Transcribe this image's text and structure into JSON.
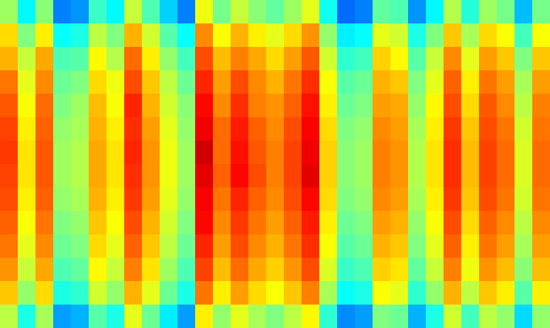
{
  "chart_data": {
    "type": "heatmap",
    "tick_labels": false,
    "zlim": [
      0,
      1
    ],
    "cells": [
      [
        0.53,
        0.37,
        0.51,
        0.25,
        0.27,
        0.43,
        0.37,
        0.57,
        0.45,
        0.33,
        0.25,
        0.61,
        0.49,
        0.57,
        0.51,
        0.47,
        0.53,
        0.6,
        0.39,
        0.23,
        0.25,
        0.47,
        0.45,
        0.27,
        0.37,
        0.55,
        0.41,
        0.53,
        0.49,
        0.31,
        0.49
      ],
      [
        0.66,
        0.5,
        0.64,
        0.38,
        0.4,
        0.56,
        0.5,
        0.7,
        0.58,
        0.46,
        0.38,
        0.74,
        0.62,
        0.7,
        0.64,
        0.6,
        0.66,
        0.73,
        0.52,
        0.36,
        0.38,
        0.6,
        0.58,
        0.4,
        0.5,
        0.68,
        0.54,
        0.66,
        0.62,
        0.44,
        0.62
      ],
      [
        0.7,
        0.57,
        0.71,
        0.45,
        0.46,
        0.63,
        0.55,
        0.77,
        0.64,
        0.52,
        0.44,
        0.8,
        0.69,
        0.75,
        0.71,
        0.66,
        0.72,
        0.79,
        0.58,
        0.42,
        0.44,
        0.67,
        0.63,
        0.46,
        0.57,
        0.74,
        0.6,
        0.72,
        0.68,
        0.5,
        0.68
      ],
      [
        0.76,
        0.6,
        0.74,
        0.48,
        0.5,
        0.66,
        0.61,
        0.8,
        0.68,
        0.56,
        0.48,
        0.84,
        0.72,
        0.8,
        0.74,
        0.7,
        0.76,
        0.83,
        0.62,
        0.46,
        0.48,
        0.7,
        0.68,
        0.5,
        0.6,
        0.78,
        0.64,
        0.76,
        0.72,
        0.54,
        0.72
      ],
      [
        0.79,
        0.62,
        0.77,
        0.5,
        0.53,
        0.69,
        0.62,
        0.84,
        0.7,
        0.58,
        0.51,
        0.87,
        0.74,
        0.83,
        0.75,
        0.73,
        0.78,
        0.86,
        0.64,
        0.48,
        0.5,
        0.72,
        0.71,
        0.52,
        0.63,
        0.8,
        0.66,
        0.79,
        0.74,
        0.56,
        0.75
      ],
      [
        0.81,
        0.64,
        0.78,
        0.52,
        0.54,
        0.7,
        0.64,
        0.83,
        0.72,
        0.6,
        0.52,
        0.89,
        0.77,
        0.85,
        0.78,
        0.74,
        0.8,
        0.88,
        0.66,
        0.5,
        0.52,
        0.74,
        0.72,
        0.54,
        0.64,
        0.82,
        0.68,
        0.8,
        0.76,
        0.58,
        0.76
      ],
      [
        0.82,
        0.65,
        0.79,
        0.53,
        0.55,
        0.71,
        0.65,
        0.84,
        0.73,
        0.61,
        0.53,
        0.92,
        0.77,
        0.86,
        0.79,
        0.75,
        0.81,
        0.89,
        0.67,
        0.51,
        0.53,
        0.75,
        0.73,
        0.55,
        0.65,
        0.83,
        0.69,
        0.81,
        0.77,
        0.59,
        0.77
      ],
      [
        0.81,
        0.65,
        0.79,
        0.53,
        0.55,
        0.71,
        0.65,
        0.83,
        0.73,
        0.61,
        0.53,
        0.9,
        0.78,
        0.87,
        0.8,
        0.75,
        0.81,
        0.9,
        0.67,
        0.51,
        0.53,
        0.75,
        0.73,
        0.55,
        0.65,
        0.83,
        0.69,
        0.81,
        0.77,
        0.59,
        0.77
      ],
      [
        0.8,
        0.64,
        0.78,
        0.52,
        0.54,
        0.7,
        0.64,
        0.82,
        0.72,
        0.6,
        0.52,
        0.88,
        0.76,
        0.84,
        0.78,
        0.74,
        0.8,
        0.87,
        0.66,
        0.5,
        0.52,
        0.74,
        0.72,
        0.54,
        0.64,
        0.82,
        0.68,
        0.8,
        0.76,
        0.58,
        0.76
      ],
      [
        0.78,
        0.62,
        0.76,
        0.5,
        0.52,
        0.68,
        0.62,
        0.8,
        0.7,
        0.58,
        0.5,
        0.87,
        0.74,
        0.82,
        0.76,
        0.72,
        0.78,
        0.85,
        0.64,
        0.48,
        0.5,
        0.72,
        0.7,
        0.52,
        0.62,
        0.8,
        0.66,
        0.78,
        0.74,
        0.56,
        0.74
      ],
      [
        0.76,
        0.6,
        0.74,
        0.48,
        0.5,
        0.66,
        0.6,
        0.78,
        0.68,
        0.56,
        0.48,
        0.84,
        0.72,
        0.8,
        0.74,
        0.7,
        0.76,
        0.83,
        0.62,
        0.46,
        0.48,
        0.7,
        0.68,
        0.5,
        0.6,
        0.78,
        0.64,
        0.76,
        0.72,
        0.54,
        0.72
      ],
      [
        0.73,
        0.57,
        0.71,
        0.45,
        0.47,
        0.63,
        0.57,
        0.75,
        0.65,
        0.53,
        0.45,
        0.81,
        0.69,
        0.77,
        0.71,
        0.67,
        0.73,
        0.8,
        0.59,
        0.43,
        0.45,
        0.67,
        0.65,
        0.47,
        0.57,
        0.75,
        0.61,
        0.73,
        0.69,
        0.51,
        0.69
      ],
      [
        0.68,
        0.52,
        0.66,
        0.4,
        0.42,
        0.58,
        0.52,
        0.7,
        0.6,
        0.48,
        0.4,
        0.76,
        0.64,
        0.72,
        0.66,
        0.62,
        0.68,
        0.75,
        0.54,
        0.38,
        0.4,
        0.62,
        0.6,
        0.42,
        0.52,
        0.7,
        0.56,
        0.68,
        0.64,
        0.46,
        0.64
      ],
      [
        0.56,
        0.4,
        0.54,
        0.28,
        0.3,
        0.46,
        0.4,
        0.6,
        0.48,
        0.36,
        0.28,
        0.64,
        0.52,
        0.6,
        0.54,
        0.5,
        0.56,
        0.63,
        0.42,
        0.26,
        0.28,
        0.5,
        0.48,
        0.3,
        0.4,
        0.58,
        0.44,
        0.56,
        0.52,
        0.34,
        0.52
      ]
    ]
  }
}
